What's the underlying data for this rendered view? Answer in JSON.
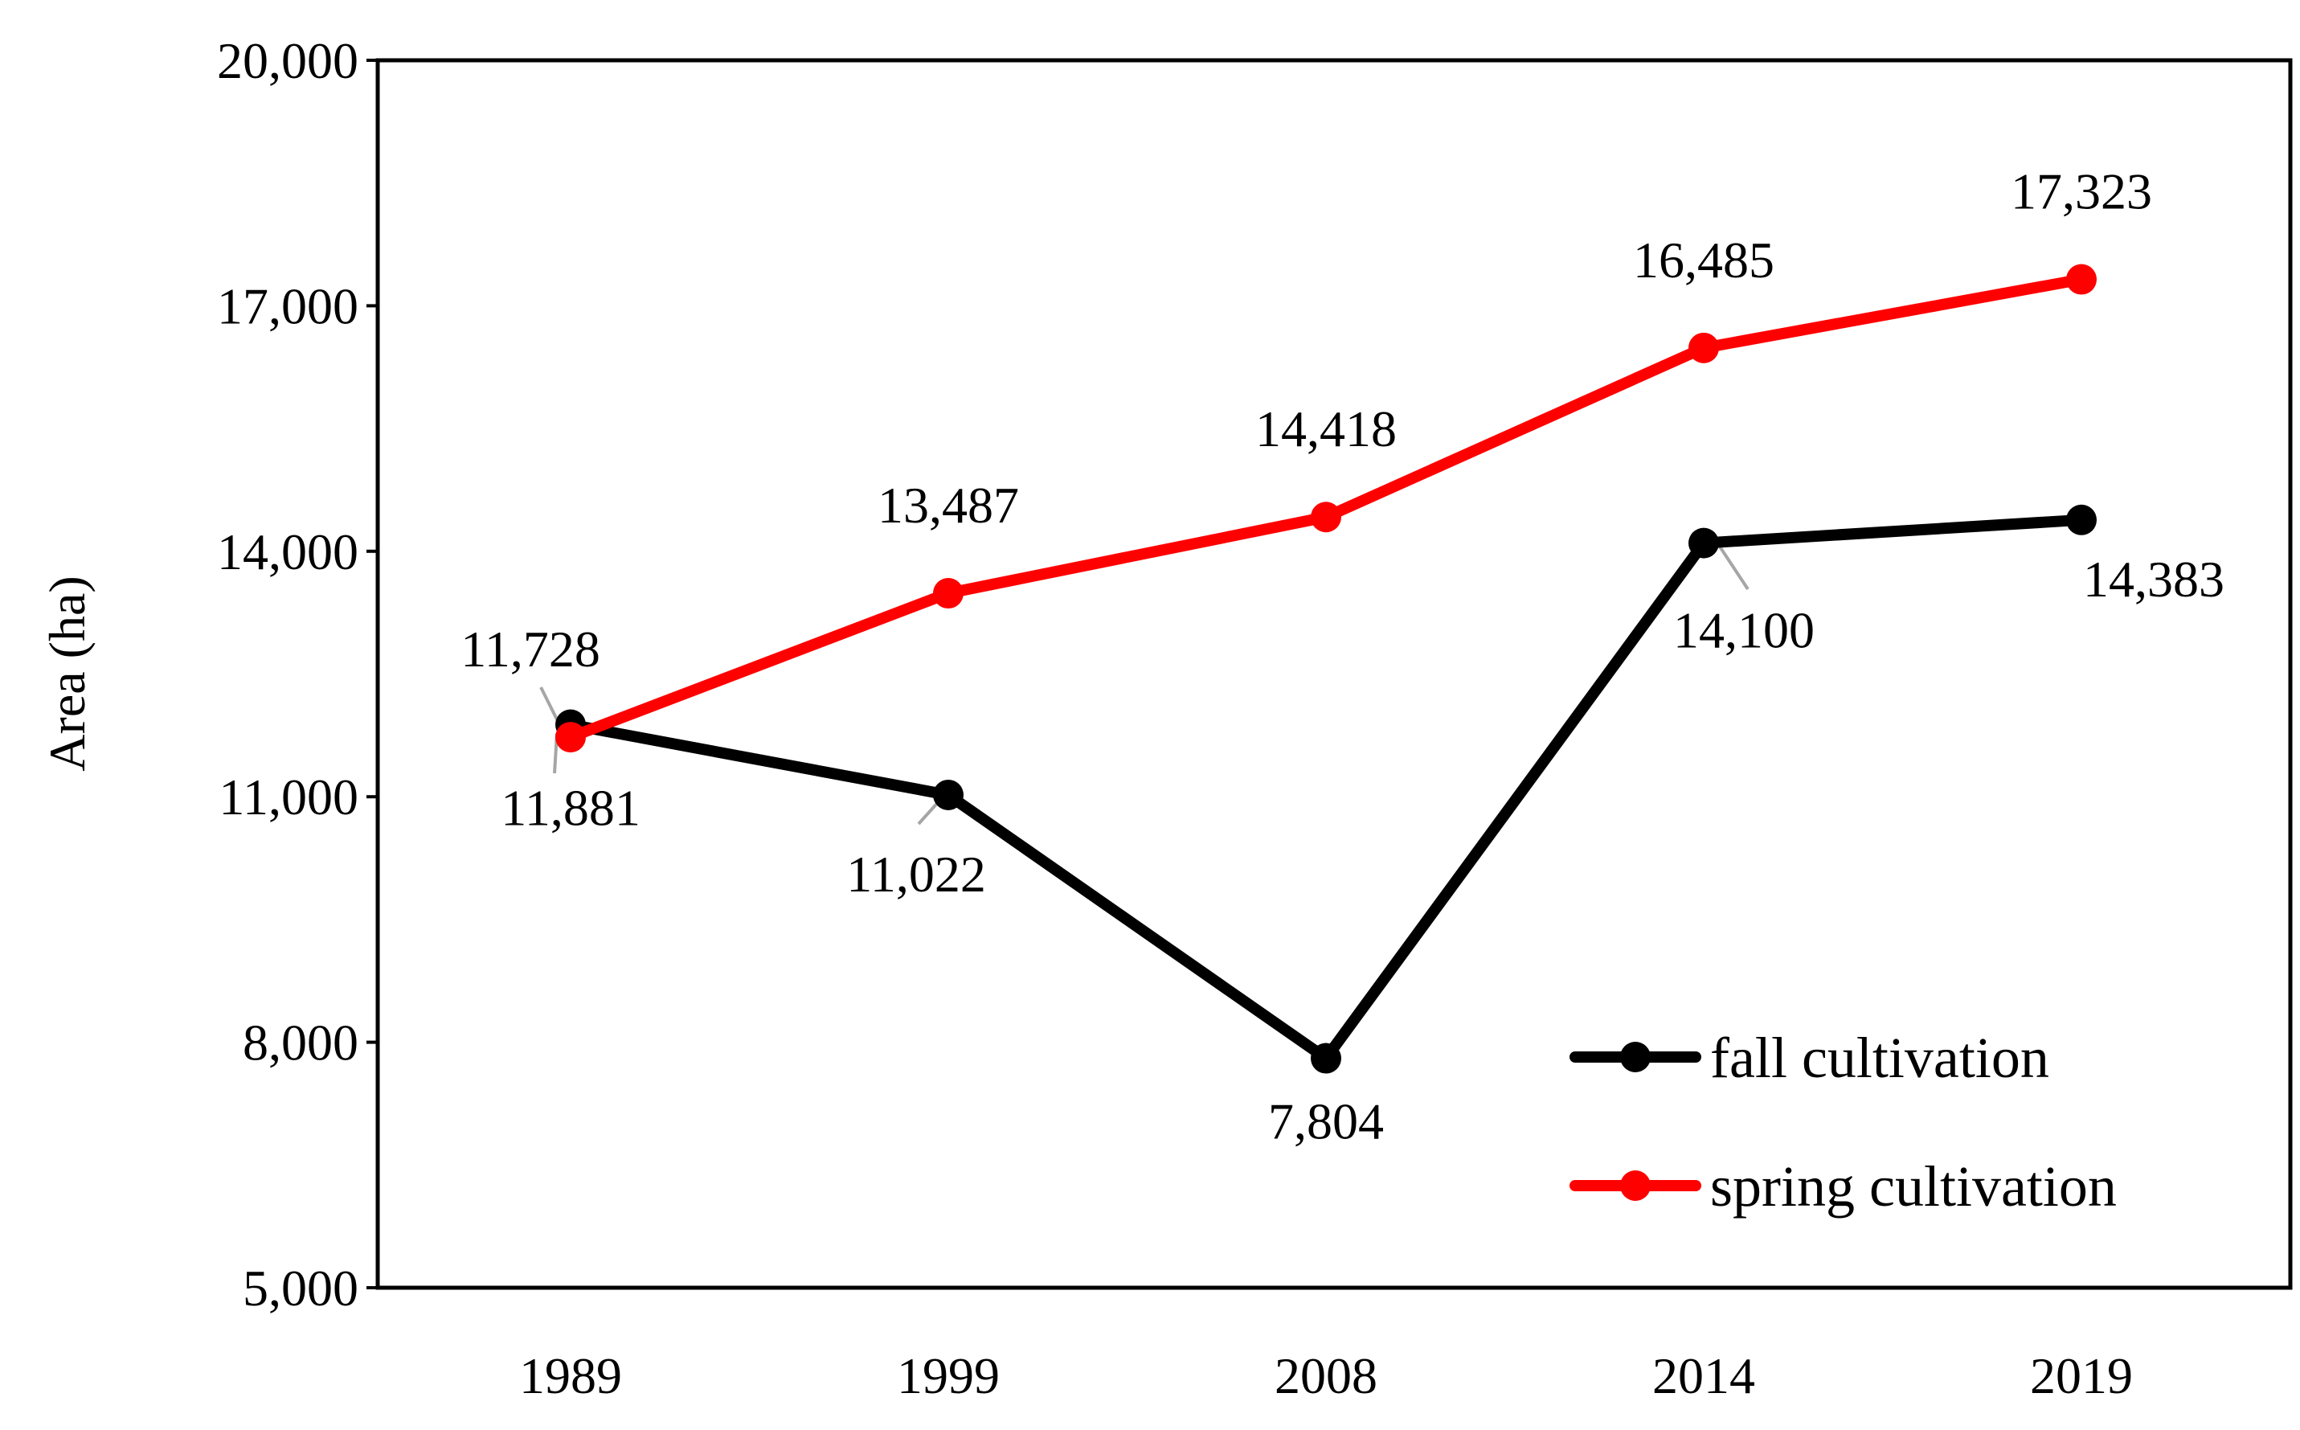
{
  "chart_data": {
    "type": "line",
    "categories": [
      "1989",
      "1999",
      "2008",
      "2014",
      "2019"
    ],
    "ylabel": "Area (ha)",
    "xlabel": "",
    "ylim": [
      5000,
      20000
    ],
    "yticks": [
      5000,
      8000,
      11000,
      14000,
      17000,
      20000
    ],
    "ytick_labels": [
      "5,000",
      "8,000",
      "11,000",
      "14,000",
      "17,000",
      "20,000"
    ],
    "grid": false,
    "legend_position": "bottom-right",
    "series": [
      {
        "name": "fall cultivation",
        "color": "#000000",
        "values": [
          11881,
          11022,
          7804,
          14100,
          14383
        ],
        "labels": [
          "11,881",
          "11,022",
          "7,804",
          "14,100",
          "14,383"
        ]
      },
      {
        "name": "spring cultivation",
        "color": "#ff0000",
        "values": [
          11728,
          13487,
          14418,
          16485,
          17323
        ],
        "labels": [
          "11,728",
          "13,487",
          "14,418",
          "16,485",
          "17,323"
        ]
      }
    ]
  }
}
